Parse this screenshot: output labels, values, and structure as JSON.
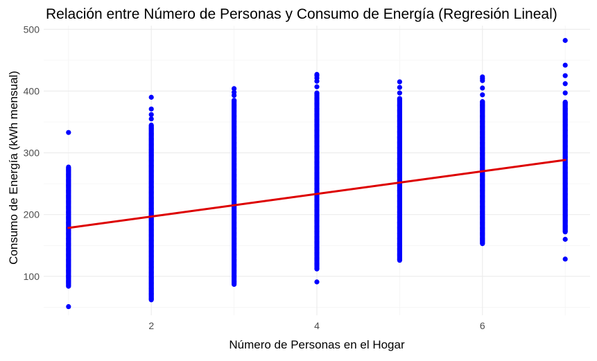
{
  "chart_data": {
    "type": "scatter",
    "title": "Relación entre Número de Personas y Consumo de Energía (Regresión Lineal)",
    "xlabel": "Número de Personas en el Hogar",
    "ylabel": "Consumo de Energía (kWh mensual)",
    "xlim": [
      0.7,
      7.3
    ],
    "ylim": [
      37,
      506
    ],
    "x_ticks": [
      2,
      4,
      6
    ],
    "y_ticks": [
      100,
      200,
      300,
      400,
      500
    ],
    "grid": true,
    "legend": "none",
    "series": [
      {
        "kind": "points",
        "color": "#0000ff",
        "columns": [
          {
            "x": 1,
            "dense": [
              84,
              277
            ],
            "outliers": [
              51,
              333
            ]
          },
          {
            "x": 2,
            "dense": [
              62,
              345
            ],
            "outliers": [
              355,
              362,
              371,
              390
            ]
          },
          {
            "x": 3,
            "dense": [
              87,
              385
            ],
            "outliers": [
              393,
              398,
              404
            ]
          },
          {
            "x": 4,
            "dense": [
              112,
              397
            ],
            "outliers": [
              91,
              407,
              416,
              421,
              425,
              427
            ]
          },
          {
            "x": 5,
            "dense": [
              126,
              388
            ],
            "outliers": [
              397,
              406,
              415
            ]
          },
          {
            "x": 6,
            "dense": [
              153,
              383
            ],
            "outliers": [
              394,
              405,
              417,
              420,
              423
            ]
          },
          {
            "x": 7,
            "dense": [
              172,
              382
            ],
            "outliers": [
              128,
              160,
              397,
              412,
              425,
              442,
              482
            ]
          }
        ]
      },
      {
        "kind": "regression-line",
        "color": "#dd0000",
        "x": [
          1,
          7
        ],
        "y": [
          178.5,
          288.5
        ]
      }
    ],
    "colors": {
      "points": "#0000ff",
      "regression": "#dd0000",
      "grid_major": "#ebebeb",
      "grid_minor": "#f4f4f4",
      "tick_text": "#4d4d4d",
      "title_text": "#000000"
    }
  }
}
